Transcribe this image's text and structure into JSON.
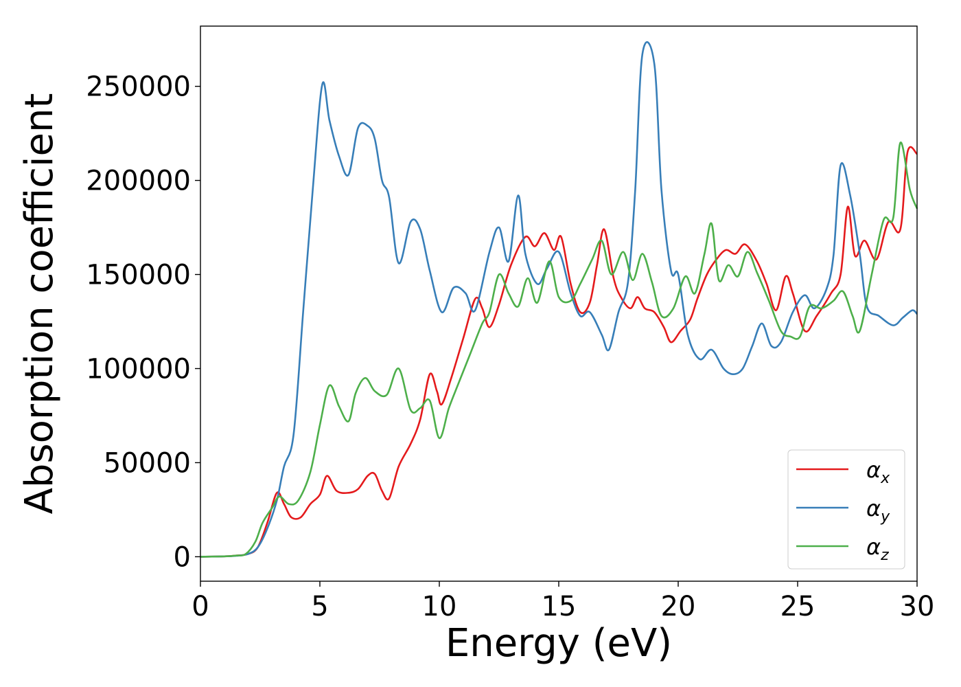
{
  "chart_data": {
    "type": "line",
    "title": "",
    "xlabel": "Energy (eV)",
    "ylabel": "Absorption coefficient",
    "xlim": [
      0,
      30
    ],
    "ylim": [
      -13000,
      282000
    ],
    "xticks": [
      0,
      5,
      10,
      15,
      20,
      25,
      30
    ],
    "xtick_labels": [
      "0",
      "5",
      "10",
      "15",
      "20",
      "25",
      "30"
    ],
    "yticks": [
      0,
      50000,
      100000,
      150000,
      200000,
      250000
    ],
    "ytick_labels": [
      "0",
      "50000",
      "100000",
      "150000",
      "200000",
      "250000"
    ],
    "grid": false,
    "legend_position": "lower-right",
    "series": [
      {
        "name": "αx",
        "symbol": "α",
        "subscript": "x",
        "color": "#e41a1c",
        "points": [
          [
            0,
            0
          ],
          [
            1,
            200
          ],
          [
            1.5,
            600
          ],
          [
            2,
            1500
          ],
          [
            2.4,
            5000
          ],
          [
            2.8,
            18000
          ],
          [
            3.2,
            34000
          ],
          [
            3.5,
            28000
          ],
          [
            3.8,
            21000
          ],
          [
            4.2,
            21000
          ],
          [
            4.6,
            28000
          ],
          [
            5.0,
            33000
          ],
          [
            5.3,
            43000
          ],
          [
            5.7,
            35000
          ],
          [
            6.2,
            34000
          ],
          [
            6.6,
            36000
          ],
          [
            7.0,
            43000
          ],
          [
            7.3,
            44000
          ],
          [
            7.6,
            35000
          ],
          [
            7.9,
            31000
          ],
          [
            8.3,
            48000
          ],
          [
            8.8,
            60000
          ],
          [
            9.2,
            73000
          ],
          [
            9.6,
            97000
          ],
          [
            9.9,
            88000
          ],
          [
            10.1,
            81000
          ],
          [
            10.5,
            95000
          ],
          [
            11.0,
            116000
          ],
          [
            11.5,
            137000
          ],
          [
            11.8,
            132000
          ],
          [
            12.1,
            122000
          ],
          [
            12.5,
            134000
          ],
          [
            13.0,
            155000
          ],
          [
            13.6,
            170000
          ],
          [
            14.0,
            165000
          ],
          [
            14.4,
            172000
          ],
          [
            14.8,
            163000
          ],
          [
            15.1,
            170000
          ],
          [
            15.5,
            145000
          ],
          [
            15.9,
            130000
          ],
          [
            16.3,
            135000
          ],
          [
            16.6,
            155000
          ],
          [
            16.9,
            174000
          ],
          [
            17.3,
            148000
          ],
          [
            17.6,
            138000
          ],
          [
            18.0,
            132000
          ],
          [
            18.3,
            138000
          ],
          [
            18.6,
            132000
          ],
          [
            19.0,
            130000
          ],
          [
            19.4,
            122000
          ],
          [
            19.7,
            114000
          ],
          [
            20.1,
            120000
          ],
          [
            20.5,
            126000
          ],
          [
            20.8,
            137000
          ],
          [
            21.2,
            150000
          ],
          [
            21.6,
            158000
          ],
          [
            22.0,
            163000
          ],
          [
            22.4,
            161000
          ],
          [
            22.8,
            166000
          ],
          [
            23.3,
            157000
          ],
          [
            23.7,
            145000
          ],
          [
            24.1,
            131000
          ],
          [
            24.5,
            149000
          ],
          [
            24.8,
            140000
          ],
          [
            25.3,
            120000
          ],
          [
            25.8,
            128000
          ],
          [
            26.4,
            140000
          ],
          [
            26.8,
            150000
          ],
          [
            27.1,
            186000
          ],
          [
            27.4,
            160000
          ],
          [
            27.8,
            168000
          ],
          [
            28.3,
            158000
          ],
          [
            28.8,
            178000
          ],
          [
            29.3,
            174000
          ],
          [
            29.6,
            215000
          ],
          [
            30,
            214000
          ]
        ]
      },
      {
        "name": "αy",
        "symbol": "α",
        "subscript": "y",
        "color": "#377eb8",
        "points": [
          [
            0,
            0
          ],
          [
            1,
            200
          ],
          [
            1.5,
            500
          ],
          [
            2,
            1500
          ],
          [
            2.4,
            5000
          ],
          [
            2.8,
            15000
          ],
          [
            3.2,
            30000
          ],
          [
            3.5,
            48000
          ],
          [
            3.9,
            65000
          ],
          [
            4.3,
            130000
          ],
          [
            4.7,
            195000
          ],
          [
            5.1,
            251000
          ],
          [
            5.4,
            232000
          ],
          [
            5.8,
            213000
          ],
          [
            6.2,
            203000
          ],
          [
            6.6,
            228000
          ],
          [
            7.0,
            229000
          ],
          [
            7.3,
            222000
          ],
          [
            7.6,
            200000
          ],
          [
            7.9,
            191000
          ],
          [
            8.3,
            156000
          ],
          [
            8.8,
            178000
          ],
          [
            9.2,
            174000
          ],
          [
            9.6,
            152000
          ],
          [
            10.1,
            130000
          ],
          [
            10.6,
            143000
          ],
          [
            11.1,
            140000
          ],
          [
            11.5,
            131000
          ],
          [
            12.1,
            162000
          ],
          [
            12.5,
            175000
          ],
          [
            12.9,
            157000
          ],
          [
            13.3,
            192000
          ],
          [
            13.6,
            161000
          ],
          [
            14.1,
            145000
          ],
          [
            14.5,
            153000
          ],
          [
            15.0,
            162000
          ],
          [
            15.5,
            140000
          ],
          [
            15.9,
            128000
          ],
          [
            16.3,
            130000
          ],
          [
            16.8,
            118000
          ],
          [
            17.1,
            110000
          ],
          [
            17.5,
            130000
          ],
          [
            17.9,
            146000
          ],
          [
            18.2,
            195000
          ],
          [
            18.5,
            267000
          ],
          [
            19.0,
            262000
          ],
          [
            19.3,
            195000
          ],
          [
            19.7,
            152000
          ],
          [
            20.0,
            150000
          ],
          [
            20.4,
            118000
          ],
          [
            20.9,
            105000
          ],
          [
            21.4,
            110000
          ],
          [
            21.9,
            100000
          ],
          [
            22.3,
            97000
          ],
          [
            22.7,
            100000
          ],
          [
            23.1,
            112000
          ],
          [
            23.5,
            124000
          ],
          [
            23.9,
            112000
          ],
          [
            24.3,
            114000
          ],
          [
            24.8,
            130000
          ],
          [
            25.3,
            139000
          ],
          [
            25.7,
            132000
          ],
          [
            26.2,
            142000
          ],
          [
            26.5,
            160000
          ],
          [
            26.8,
            208000
          ],
          [
            27.2,
            192000
          ],
          [
            27.6,
            161000
          ],
          [
            27.9,
            133000
          ],
          [
            28.4,
            128000
          ],
          [
            29.0,
            123000
          ],
          [
            29.4,
            127000
          ],
          [
            29.8,
            131000
          ],
          [
            30,
            129000
          ]
        ]
      },
      {
        "name": "αz",
        "symbol": "α",
        "subscript": "z",
        "color": "#4daf4a",
        "points": [
          [
            0,
            0
          ],
          [
            1,
            200
          ],
          [
            1.5,
            600
          ],
          [
            1.9,
            1500
          ],
          [
            2.3,
            8000
          ],
          [
            2.6,
            18000
          ],
          [
            3.0,
            26000
          ],
          [
            3.3,
            32000
          ],
          [
            3.7,
            28000
          ],
          [
            4.1,
            30000
          ],
          [
            4.6,
            45000
          ],
          [
            5.0,
            70000
          ],
          [
            5.4,
            91000
          ],
          [
            5.8,
            80000
          ],
          [
            6.2,
            72000
          ],
          [
            6.5,
            87000
          ],
          [
            6.9,
            95000
          ],
          [
            7.3,
            88000
          ],
          [
            7.8,
            86000
          ],
          [
            8.3,
            100000
          ],
          [
            8.8,
            78000
          ],
          [
            9.2,
            79000
          ],
          [
            9.6,
            83000
          ],
          [
            10.0,
            63000
          ],
          [
            10.4,
            79000
          ],
          [
            10.8,
            92000
          ],
          [
            11.3,
            108000
          ],
          [
            11.8,
            124000
          ],
          [
            12.1,
            130000
          ],
          [
            12.5,
            150000
          ],
          [
            12.9,
            140000
          ],
          [
            13.3,
            133000
          ],
          [
            13.7,
            148000
          ],
          [
            14.1,
            135000
          ],
          [
            14.6,
            157000
          ],
          [
            15.0,
            138000
          ],
          [
            15.5,
            136000
          ],
          [
            15.9,
            145000
          ],
          [
            16.4,
            158000
          ],
          [
            16.8,
            168000
          ],
          [
            17.2,
            150000
          ],
          [
            17.7,
            162000
          ],
          [
            18.1,
            147000
          ],
          [
            18.5,
            161000
          ],
          [
            18.9,
            146000
          ],
          [
            19.3,
            128000
          ],
          [
            19.8,
            132000
          ],
          [
            20.3,
            149000
          ],
          [
            20.7,
            140000
          ],
          [
            21.1,
            161000
          ],
          [
            21.4,
            177000
          ],
          [
            21.7,
            147000
          ],
          [
            22.1,
            155000
          ],
          [
            22.5,
            149000
          ],
          [
            22.9,
            162000
          ],
          [
            23.3,
            151000
          ],
          [
            23.8,
            136000
          ],
          [
            24.3,
            120000
          ],
          [
            24.7,
            117000
          ],
          [
            25.1,
            117000
          ],
          [
            25.5,
            133000
          ],
          [
            26.0,
            132000
          ],
          [
            26.5,
            136000
          ],
          [
            26.9,
            141000
          ],
          [
            27.3,
            128000
          ],
          [
            27.6,
            120000
          ],
          [
            28.1,
            150000
          ],
          [
            28.6,
            179000
          ],
          [
            29.0,
            180000
          ],
          [
            29.3,
            220000
          ],
          [
            29.7,
            195000
          ],
          [
            30,
            185000
          ]
        ]
      }
    ]
  }
}
